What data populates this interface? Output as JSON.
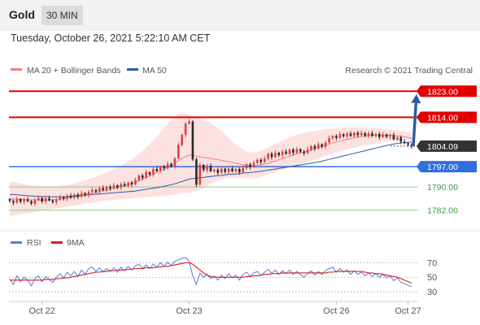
{
  "header": {
    "instrument": "Gold",
    "timeframe": "30 MIN"
  },
  "timestamp": "Tuesday, October 26, 2021 5:22:10 AM CET",
  "credit": "Research © 2021 Trading Central",
  "colors": {
    "resistance": "#e00000",
    "support": "#2f6fde",
    "target": "#3b9b3b",
    "price": "#333333",
    "ma20": "#f08080",
    "ma50": "#2e5c9e",
    "bands_fill": "#fbdcdc",
    "rsi": "#5b7fd8",
    "rsi_ma": "#d81e1e",
    "candle_up": "#e04040",
    "candle_down": "#2b2b2b",
    "forecast_arrow": "#2e5c9e"
  },
  "chart_data": [
    {
      "type": "candlestick",
      "legend": [
        {
          "name": "MA 20 + Bollinger Bands",
          "color": "#f08080"
        },
        {
          "name": "MA 50",
          "color": "#2e5c9e"
        }
      ],
      "legend_position": "top-left",
      "ylim": [
        1778,
        1827
      ],
      "x_ticks": [
        {
          "label": "Oct 22",
          "i": 9
        },
        {
          "label": "Oct 23",
          "i": 50
        },
        {
          "label": "Oct 26",
          "i": 91
        },
        {
          "label": "Oct 27",
          "i": 111
        }
      ],
      "levels": [
        {
          "value": 1823.0,
          "label": "1823.00",
          "role": "resistance"
        },
        {
          "value": 1814.0,
          "label": "1814.00",
          "role": "resistance"
        },
        {
          "value": 1804.09,
          "label": "1804.09",
          "role": "price"
        },
        {
          "value": 1797.0,
          "label": "1797.00",
          "role": "support"
        },
        {
          "value": 1790.0,
          "label": "1790.00",
          "role": "target"
        },
        {
          "value": 1782.0,
          "label": "1782.00",
          "role": "target"
        }
      ],
      "forecast": {
        "from_value": 1804.09,
        "to_value": 1822.0
      },
      "close": [
        1785.2,
        1784.6,
        1785.8,
        1784.9,
        1785.7,
        1785.1,
        1784.3,
        1785.5,
        1786.2,
        1785.0,
        1786.1,
        1785.4,
        1784.8,
        1785.6,
        1786.5,
        1785.9,
        1787.0,
        1786.3,
        1787.4,
        1786.6,
        1787.9,
        1787.2,
        1788.3,
        1789.0,
        1788.4,
        1789.6,
        1788.9,
        1790.1,
        1789.5,
        1790.6,
        1789.8,
        1791.0,
        1790.4,
        1791.5,
        1790.9,
        1792.4,
        1794.0,
        1793.2,
        1795.1,
        1794.3,
        1796.2,
        1795.5,
        1797.0,
        1796.4,
        1798.0,
        1797.2,
        1799.8,
        1804.5,
        1808.0,
        1811.8,
        1812.6,
        1799.5,
        1790.8,
        1797.6,
        1795.8,
        1797.3,
        1795.4,
        1796.0,
        1794.9,
        1796.3,
        1795.2,
        1796.4,
        1795.4,
        1796.2,
        1795.1,
        1796.5,
        1797.8,
        1796.9,
        1798.3,
        1799.4,
        1798.6,
        1799.8,
        1801.5,
        1800.3,
        1801.8,
        1800.9,
        1802.2,
        1801.4,
        1802.9,
        1801.8,
        1803.0,
        1802.2,
        1801.6,
        1802.9,
        1804.1,
        1803.3,
        1804.7,
        1803.9,
        1805.3,
        1806.8,
        1807.6,
        1806.9,
        1808.2,
        1807.5,
        1808.4,
        1807.6,
        1808.7,
        1807.9,
        1808.6,
        1807.7,
        1808.5,
        1807.6,
        1808.3,
        1807.2,
        1808.1,
        1807.3,
        1807.9,
        1806.4,
        1807.1,
        1805.6,
        1805.1,
        1804.5,
        1804.1
      ],
      "ma20": [
        1786.0,
        1785.9,
        1785.8,
        1785.8,
        1785.7,
        1785.6,
        1785.6,
        1785.6,
        1785.5,
        1785.5,
        1785.5,
        1785.5,
        1785.6,
        1785.7,
        1785.8,
        1786.0,
        1786.2,
        1786.4,
        1786.6,
        1786.8,
        1787.0,
        1787.3,
        1787.5,
        1787.8,
        1788.0,
        1788.3,
        1788.6,
        1788.9,
        1789.2,
        1789.5,
        1789.8,
        1790.1,
        1790.4,
        1790.8,
        1791.2,
        1791.7,
        1792.2,
        1792.7,
        1793.3,
        1793.8,
        1794.4,
        1795.0,
        1795.6,
        1796.2,
        1796.9,
        1797.6,
        1798.3,
        1799.0,
        1799.8,
        1800.5,
        1801.0,
        1800.9,
        1800.6,
        1800.4,
        1800.2,
        1800.0,
        1799.8,
        1799.6,
        1799.4,
        1799.2,
        1799.0,
        1798.8,
        1798.5,
        1798.2,
        1797.9,
        1797.6,
        1797.4,
        1797.3,
        1797.3,
        1797.4,
        1797.6,
        1797.9,
        1798.2,
        1798.6,
        1799.0,
        1799.4,
        1799.8,
        1800.2,
        1800.6,
        1801.0,
        1801.4,
        1801.8,
        1802.1,
        1802.4,
        1802.8,
        1803.2,
        1803.6,
        1804.0,
        1804.4,
        1804.8,
        1805.2,
        1805.5,
        1805.8,
        1806.1,
        1806.4,
        1806.7,
        1807.0,
        1807.2,
        1807.4,
        1807.6,
        1807.7,
        1807.8,
        1807.9,
        1807.9,
        1807.9,
        1807.9,
        1807.8,
        1807.7,
        1807.6,
        1807.5,
        1807.3,
        1807.0,
        1806.7
      ],
      "ma50": [
        1787.5,
        1787.4,
        1787.3,
        1787.2,
        1787.1,
        1787.0,
        1786.9,
        1786.8,
        1786.8,
        1786.7,
        1786.7,
        1786.6,
        1786.6,
        1786.6,
        1786.6,
        1786.6,
        1786.7,
        1786.8,
        1786.9,
        1787.0,
        1787.1,
        1787.2,
        1787.3,
        1787.4,
        1787.5,
        1787.6,
        1787.7,
        1787.8,
        1787.9,
        1788.0,
        1788.1,
        1788.2,
        1788.3,
        1788.4,
        1788.5,
        1788.6,
        1788.8,
        1789.0,
        1789.2,
        1789.4,
        1789.6,
        1789.8,
        1790.0,
        1790.2,
        1790.5,
        1790.8,
        1791.1,
        1791.5,
        1791.9,
        1792.3,
        1792.7,
        1792.9,
        1793.0,
        1793.2,
        1793.3,
        1793.5,
        1793.6,
        1793.8,
        1793.9,
        1794.0,
        1794.2,
        1794.3,
        1794.4,
        1794.5,
        1794.6,
        1794.8,
        1794.9,
        1795.0,
        1795.1,
        1795.3,
        1795.4,
        1795.6,
        1795.8,
        1796.0,
        1796.2,
        1796.4,
        1796.6,
        1796.8,
        1797.0,
        1797.2,
        1797.4,
        1797.6,
        1797.8,
        1798.0,
        1798.2,
        1798.4,
        1798.6,
        1798.9,
        1799.2,
        1799.5,
        1799.8,
        1800.1,
        1800.4,
        1800.7,
        1801.0,
        1801.3,
        1801.6,
        1801.9,
        1802.2,
        1802.5,
        1802.8,
        1803.1,
        1803.4,
        1803.7,
        1804.0,
        1804.3,
        1804.6,
        1804.8,
        1805.0,
        1805.2,
        1805.3,
        1805.4,
        1805.5
      ],
      "band_upper": [
        1792.0,
        1791.8,
        1791.5,
        1791.2,
        1791.0,
        1790.8,
        1790.6,
        1790.5,
        1790.4,
        1790.3,
        1790.2,
        1790.2,
        1790.2,
        1790.3,
        1790.4,
        1790.6,
        1790.8,
        1791.0,
        1791.3,
        1791.6,
        1791.9,
        1792.3,
        1792.7,
        1793.1,
        1793.5,
        1794.0,
        1794.5,
        1795.0,
        1795.6,
        1796.2,
        1796.8,
        1797.4,
        1798.1,
        1798.8,
        1799.6,
        1800.5,
        1801.5,
        1802.5,
        1803.6,
        1804.8,
        1806.0,
        1807.4,
        1808.8,
        1810.3,
        1811.8,
        1813.2,
        1814.4,
        1815.3,
        1815.6,
        1815.3,
        1814.8,
        1814.2,
        1813.8,
        1813.5,
        1813.1,
        1812.6,
        1812.0,
        1811.2,
        1810.3,
        1809.3,
        1808.2,
        1807.0,
        1805.8,
        1804.6,
        1803.6,
        1802.8,
        1802.2,
        1801.9,
        1801.9,
        1802.1,
        1802.5,
        1803.0,
        1803.6,
        1804.2,
        1804.8,
        1805.4,
        1806.0,
        1806.6,
        1807.1,
        1807.6,
        1808.0,
        1808.3,
        1808.6,
        1808.9,
        1809.1,
        1809.3,
        1809.5,
        1809.7,
        1809.9,
        1810.0,
        1810.1,
        1810.2,
        1810.3,
        1810.3,
        1810.4,
        1810.4,
        1810.4,
        1810.4,
        1810.4,
        1810.4,
        1810.3,
        1810.3,
        1810.2,
        1810.1,
        1810.0,
        1809.9,
        1809.8,
        1809.7,
        1809.5,
        1809.3,
        1809.1,
        1808.9,
        1808.7
      ],
      "band_lower": [
        1780.0,
        1780.2,
        1780.4,
        1780.6,
        1780.8,
        1781.0,
        1781.2,
        1781.4,
        1781.6,
        1781.8,
        1782.0,
        1782.2,
        1782.4,
        1782.6,
        1782.8,
        1783.0,
        1783.2,
        1783.4,
        1783.6,
        1783.8,
        1784.0,
        1784.2,
        1784.4,
        1784.6,
        1784.8,
        1785.0,
        1785.2,
        1785.4,
        1785.5,
        1785.6,
        1785.7,
        1785.8,
        1785.9,
        1786.0,
        1786.1,
        1786.2,
        1786.3,
        1786.4,
        1786.5,
        1786.6,
        1786.7,
        1786.8,
        1786.9,
        1787.0,
        1787.1,
        1787.2,
        1787.4,
        1787.6,
        1787.8,
        1788.0,
        1788.0,
        1788.2,
        1788.6,
        1789.1,
        1789.7,
        1790.4,
        1791.1,
        1791.7,
        1792.2,
        1792.6,
        1792.9,
        1793.1,
        1793.2,
        1793.2,
        1793.1,
        1793.0,
        1792.9,
        1792.9,
        1793.0,
        1793.2,
        1793.5,
        1793.9,
        1794.3,
        1794.7,
        1795.1,
        1795.5,
        1795.9,
        1796.3,
        1796.7,
        1797.1,
        1797.5,
        1797.9,
        1798.3,
        1798.7,
        1799.1,
        1799.5,
        1799.9,
        1800.3,
        1800.7,
        1801.1,
        1801.5,
        1801.9,
        1802.3,
        1802.7,
        1803.0,
        1803.3,
        1803.6,
        1803.9,
        1804.2,
        1804.4,
        1804.6,
        1804.8,
        1805.0,
        1805.2,
        1805.4,
        1805.6,
        1805.8,
        1805.9,
        1806.0,
        1806.1,
        1806.2,
        1806.3,
        1806.4
      ]
    },
    {
      "type": "line",
      "legend": [
        {
          "name": "RSI",
          "color": "#5b7fd8"
        },
        {
          "name": "9MA",
          "color": "#d81e1e"
        }
      ],
      "ylim": [
        20,
        85
      ],
      "y_ticks": [
        70,
        50,
        30
      ],
      "rsi": [
        48,
        40,
        52,
        44,
        50,
        46,
        38,
        48,
        52,
        44,
        51,
        47,
        43,
        50,
        55,
        49,
        57,
        52,
        58,
        51,
        60,
        54,
        62,
        64,
        58,
        63,
        57,
        62,
        58,
        63,
        57,
        64,
        59,
        65,
        60,
        66,
        68,
        62,
        67,
        62,
        68,
        64,
        70,
        65,
        71,
        66,
        72,
        74,
        76,
        77,
        72,
        52,
        40,
        56,
        50,
        54,
        48,
        52,
        46,
        53,
        48,
        55,
        49,
        53,
        46,
        54,
        57,
        51,
        56,
        58,
        52,
        57,
        61,
        55,
        60,
        54,
        59,
        55,
        60,
        54,
        58,
        54,
        50,
        55,
        59,
        53,
        58,
        54,
        59,
        62,
        64,
        57,
        62,
        57,
        60,
        54,
        59,
        54,
        57,
        52,
        56,
        51,
        55,
        50,
        54,
        49,
        52,
        45,
        49,
        43,
        41,
        39,
        37
      ],
      "rsi_ma": [
        46,
        46,
        46,
        46,
        46,
        46,
        46,
        46,
        46,
        46,
        47,
        47,
        47,
        48,
        48,
        49,
        49,
        50,
        51,
        52,
        53,
        54,
        55,
        56,
        57,
        57,
        58,
        58,
        59,
        59,
        60,
        60,
        60,
        61,
        61,
        62,
        62,
        62,
        63,
        63,
        63,
        64,
        64,
        65,
        65,
        66,
        67,
        68,
        69,
        70,
        70,
        68,
        64,
        60,
        56,
        53,
        51,
        50,
        50,
        50,
        50,
        50,
        50,
        50,
        50,
        50,
        51,
        51,
        52,
        52,
        53,
        54,
        54,
        55,
        55,
        55,
        56,
        56,
        56,
        56,
        56,
        56,
        56,
        56,
        56,
        56,
        56,
        56,
        56,
        57,
        57,
        58,
        58,
        58,
        58,
        58,
        58,
        58,
        58,
        57,
        56,
        56,
        55,
        55,
        54,
        53,
        52,
        51,
        50,
        48,
        46,
        44,
        42
      ]
    }
  ]
}
